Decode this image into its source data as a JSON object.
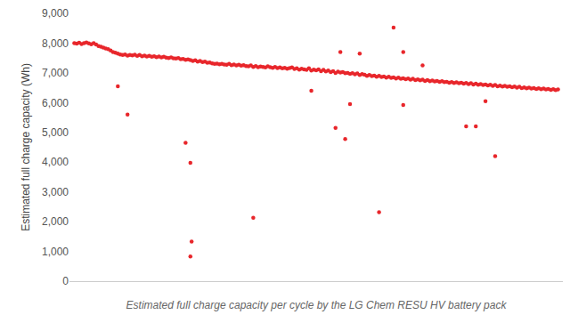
{
  "chart_data": {
    "type": "scatter",
    "x_label": "Estimated full charge capacity per cycle by the LG Chem RESU HV battery pack",
    "y_label": "Estimated full charge capacity (Wh)",
    "x": [
      0,
      1,
      2,
      3,
      4,
      5,
      6,
      7,
      8,
      9,
      10,
      11,
      12,
      13,
      14,
      15,
      16,
      17,
      18,
      19,
      20,
      21,
      22,
      23,
      24,
      25,
      26,
      27,
      28,
      29,
      30,
      31,
      32,
      33,
      34,
      35,
      36,
      37,
      38,
      39,
      40,
      41,
      42,
      43,
      44,
      45,
      46,
      47,
      48,
      49,
      50,
      51,
      52,
      53,
      54,
      55,
      56,
      57,
      58,
      59,
      60,
      61,
      62,
      63,
      64,
      65,
      66,
      67,
      68,
      69,
      70,
      71,
      72,
      73,
      74,
      75,
      76,
      77,
      78,
      79,
      80,
      81,
      82,
      83,
      84,
      85,
      86,
      87,
      88,
      89,
      90,
      91,
      92,
      93,
      94,
      95,
      96,
      97,
      98,
      99,
      100,
      101,
      102,
      103,
      104,
      105,
      106,
      107,
      108,
      109,
      110,
      111,
      112,
      113,
      114,
      115,
      116,
      117,
      118,
      119,
      120,
      121,
      122,
      123,
      124,
      125,
      126,
      127,
      128,
      129,
      130,
      131,
      132,
      133,
      134,
      135,
      136,
      137,
      138,
      139,
      140,
      141,
      142,
      143,
      144,
      145,
      146,
      147,
      148,
      149,
      150,
      151,
      152,
      153,
      154,
      155,
      156,
      157,
      158,
      159,
      160,
      161,
      162,
      163,
      164,
      165,
      166,
      167,
      168,
      169,
      170,
      171,
      172,
      173,
      174,
      175,
      176,
      177,
      178,
      179,
      180,
      181,
      182,
      183,
      184,
      185,
      186,
      187,
      188,
      189,
      190,
      191,
      192,
      193,
      194,
      195,
      196,
      197,
      198,
      199,
      200,
      18,
      22,
      46,
      48,
      48.5,
      48,
      74,
      98,
      108,
      112,
      114,
      126,
      132,
      136,
      136,
      162,
      166,
      170,
      174,
      110,
      118,
      144
    ],
    "values": [
      8000,
      7980,
      8010,
      7970,
      8000,
      8020,
      7990,
      7960,
      8000,
      7950,
      7900,
      7880,
      7850,
      7820,
      7800,
      7750,
      7700,
      7680,
      7650,
      7620,
      7600,
      7620,
      7580,
      7600,
      7590,
      7610,
      7570,
      7600,
      7560,
      7580,
      7550,
      7570,
      7540,
      7560,
      7530,
      7550,
      7520,
      7540,
      7510,
      7500,
      7520,
      7490,
      7480,
      7500,
      7460,
      7470,
      7440,
      7450,
      7430,
      7400,
      7420,
      7380,
      7400,
      7360,
      7380,
      7340,
      7350,
      7320,
      7300,
      7310,
      7290,
      7300,
      7280,
      7270,
      7300,
      7260,
      7280,
      7250,
      7270,
      7240,
      7260,
      7230,
      7220,
      7250,
      7200,
      7230,
      7190,
      7210,
      7200,
      7180,
      7220,
      7190,
      7170,
      7200,
      7160,
      7180,
      7150,
      7170,
      7140,
      7160,
      7180,
      7130,
      7150,
      7110,
      7140,
      7120,
      7100,
      7150,
      7080,
      7110,
      7090,
      7120,
      7060,
      7100,
      7050,
      7080,
      7030,
      7060,
      7000,
      7040,
      7010,
      7030,
      6990,
      7000,
      6970,
      6990,
      6950,
      6980,
      6930,
      6960,
      6940,
      6900,
      6930,
      6890,
      6910,
      6870,
      6900,
      6860,
      6880,
      6840,
      6870,
      6830,
      6850,
      6810,
      6840,
      6800,
      6820,
      6790,
      6810,
      6770,
      6800,
      6760,
      6780,
      6750,
      6770,
      6730,
      6760,
      6720,
      6740,
      6710,
      6730,
      6700,
      6720,
      6690,
      6700,
      6670,
      6690,
      6660,
      6680,
      6650,
      6670,
      6640,
      6660,
      6620,
      6650,
      6610,
      6640,
      6600,
      6620,
      6590,
      6610,
      6580,
      6600,
      6560,
      6590,
      6550,
      6570,
      6540,
      6560,
      6530,
      6550,
      6520,
      6540,
      6500,
      6530,
      6490,
      6510,
      6480,
      6500,
      6470,
      6490,
      6460,
      6480,
      6450,
      6470,
      6440,
      6460,
      6430,
      6450,
      6420,
      6440,
      6550,
      5600,
      4650,
      3980,
      1330,
      830,
      2130,
      6400,
      5150,
      4780,
      5950,
      2320,
      8520,
      5920,
      7700,
      5200,
      5200,
      6050,
      4200,
      7700,
      7650,
      7250
    ],
    "color": "#e8262b",
    "marker": "circle",
    "xlim": [
      -2,
      202
    ],
    "ylim": [
      0,
      9000
    ],
    "yticks": [
      0,
      {
        "value": 1000,
        "label": "1,000"
      },
      {
        "value": 2000,
        "label": "2,000"
      },
      {
        "value": 3000,
        "label": "3,000"
      },
      {
        "value": 4000,
        "label": "4,000"
      },
      {
        "value": 5000,
        "label": "5,000"
      },
      {
        "value": 6000,
        "label": "6,000"
      },
      {
        "value": 7000,
        "label": "7,000"
      },
      {
        "value": 8000,
        "label": "8,000"
      },
      {
        "value": 9000,
        "label": "9,000"
      }
    ],
    "grid": false,
    "tick_labels": "y"
  }
}
